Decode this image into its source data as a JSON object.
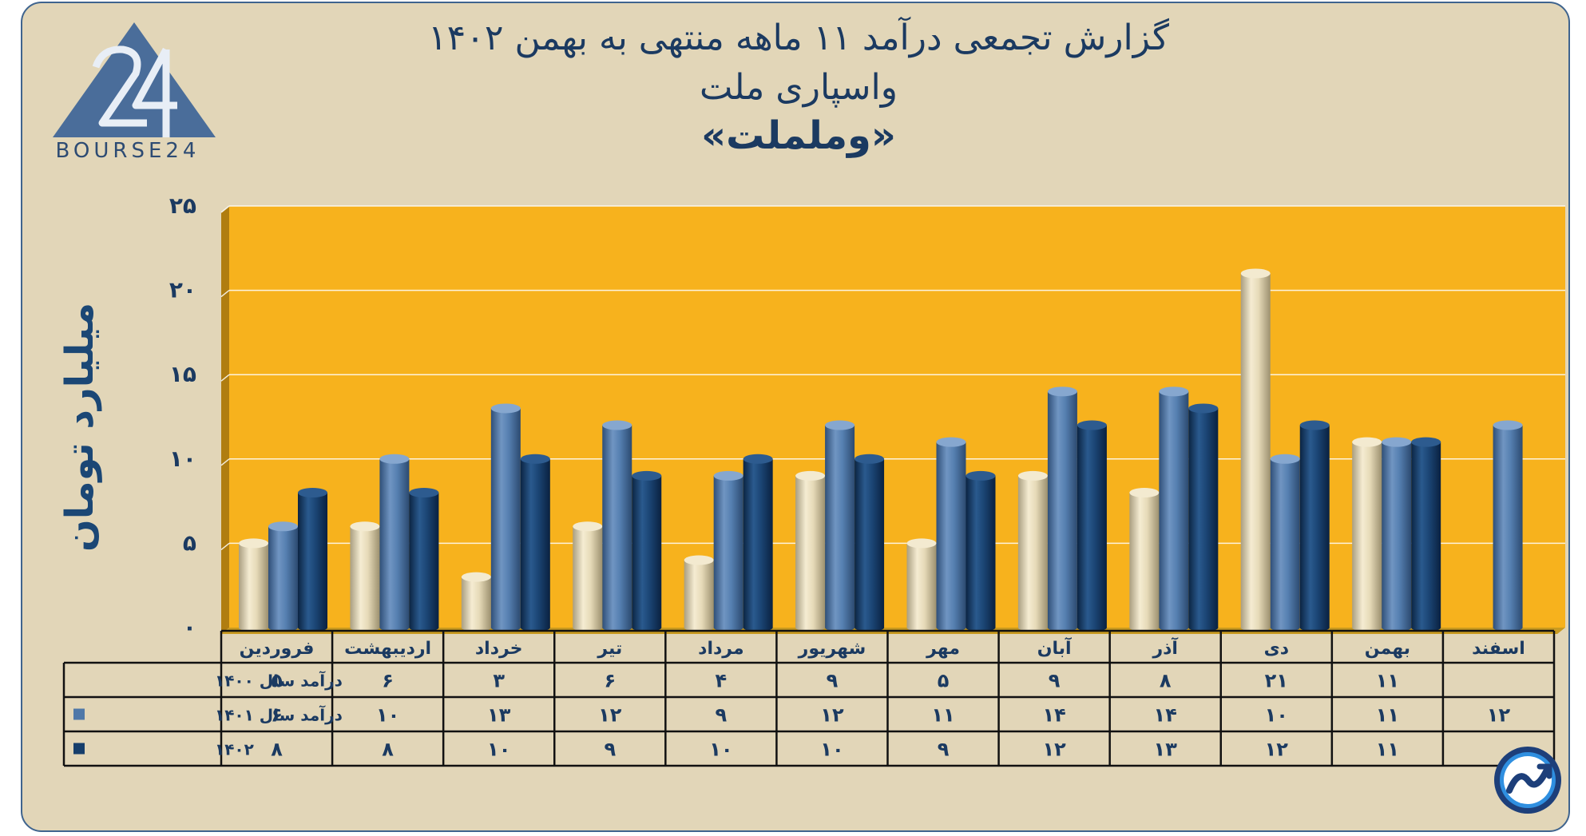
{
  "title_line1": "گزارش تجمعی درآمد ۱۱ ماهه منتهی به بهمن ۱۴۰۲",
  "title_line2": "واسپاری ملت",
  "title_line3": "«وململت»",
  "logo_text": "BOURSE24",
  "colors": {
    "background": "#e2d6b8",
    "plot": "#f7b21d",
    "series_1400": "#e8dcbc",
    "series_1401": "#4f78a8",
    "series_1402": "#163e6b",
    "text": "#1b3a61"
  },
  "chart_data": {
    "type": "bar",
    "ylabel": "میلیارد تومان",
    "ylim": [
      0,
      25
    ],
    "yticks": [
      "۰",
      "۵",
      "۱۰",
      "۱۵",
      "۲۰",
      "۲۵"
    ],
    "ytick_values": [
      0,
      5,
      10,
      15,
      20,
      25
    ],
    "categories": [
      "فروردین",
      "اردیبهشت",
      "خرداد",
      "تیر",
      "مرداد",
      "شهریور",
      "مهر",
      "آبان",
      "آذر",
      "دی",
      "بهمن",
      "اسفند"
    ],
    "series": [
      {
        "name": "درآمد سال ۱۴۰۰",
        "values": [
          5,
          6,
          3,
          6,
          4,
          9,
          5,
          9,
          8,
          21,
          11,
          null
        ],
        "labels": [
          "۵",
          "۶",
          "۳",
          "۶",
          "۴",
          "۹",
          "۵",
          "۹",
          "۸",
          "۲۱",
          "۱۱",
          ""
        ]
      },
      {
        "name": "درآمد سال ۱۴۰۱",
        "values": [
          6,
          10,
          13,
          12,
          9,
          12,
          11,
          14,
          14,
          10,
          11,
          12
        ],
        "labels": [
          "۶",
          "۱۰",
          "۱۳",
          "۱۲",
          "۹",
          "۱۲",
          "۱۱",
          "۱۴",
          "۱۴",
          "۱۰",
          "۱۱",
          "۱۲"
        ]
      },
      {
        "name": "۱۴۰۲",
        "values": [
          8,
          8,
          10,
          9,
          10,
          10,
          9,
          12,
          13,
          12,
          11,
          null
        ],
        "labels": [
          "۸",
          "۸",
          "۱۰",
          "۹",
          "۱۰",
          "۱۰",
          "۹",
          "۱۲",
          "۱۳",
          "۱۲",
          "۱۱",
          ""
        ]
      }
    ],
    "grid": true,
    "legend": "data-table-left"
  }
}
